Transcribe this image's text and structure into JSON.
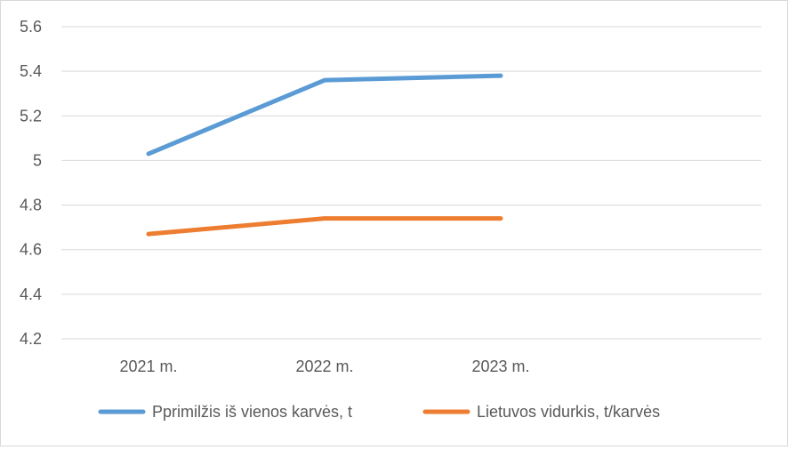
{
  "chart_data": {
    "type": "line",
    "categories": [
      "2021 m.",
      "2022 m.",
      "2023 m."
    ],
    "series": [
      {
        "name": "Pprimilžis iš vienos karvės, t",
        "values": [
          5.03,
          5.36,
          5.38
        ],
        "color": "#5b9bd5"
      },
      {
        "name": "Lietuvos vidurkis, t/karvės",
        "values": [
          4.67,
          4.74,
          4.74
        ],
        "color": "#ed7d31"
      }
    ],
    "ylim": [
      4.2,
      5.6
    ],
    "yticks": [
      4.2,
      4.4,
      4.6,
      4.8,
      5,
      5.2,
      5.4,
      5.6
    ],
    "ytick_labels": [
      "4.2",
      "4.4",
      "4.6",
      "4.8",
      "5",
      "5.2",
      "5.4",
      "5.6"
    ],
    "grid": true,
    "legend_position": "bottom",
    "gridline_color": "#d9d9d9"
  }
}
